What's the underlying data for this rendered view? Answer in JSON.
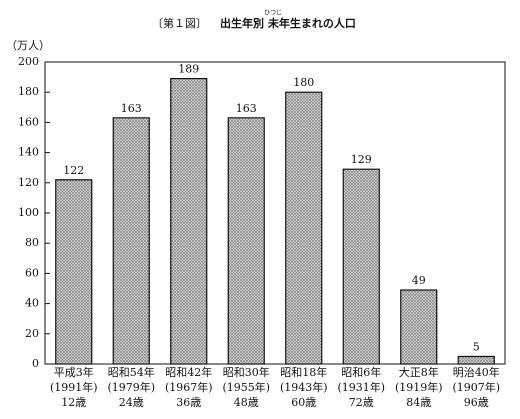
{
  "chart_data": {
    "type": "bar",
    "figure_label": "〔第１図〕",
    "title": "出生年別 未年生まれの人口",
    "title_ruby": "ひつじ",
    "y_label": "（万人）",
    "categories": [
      [
        "平成3年",
        "(1991年)",
        "12歳"
      ],
      [
        "昭和54年",
        "(1979年)",
        "24歳"
      ],
      [
        "昭和42年",
        "(1967年)",
        "36歳"
      ],
      [
        "昭和30年",
        "(1955年)",
        "48歳"
      ],
      [
        "昭和18年",
        "(1943年)",
        "60歳"
      ],
      [
        "昭和6年",
        "(1931年)",
        "72歳"
      ],
      [
        "大正8年",
        "(1919年)",
        "84歳"
      ],
      [
        "明治40年",
        "(1907年)",
        "96歳"
      ]
    ],
    "values": [
      122,
      163,
      189,
      163,
      180,
      129,
      49,
      5
    ],
    "color": "#c8c8c8",
    "ylim": [
      0,
      200
    ],
    "yticks": [
      0,
      20,
      40,
      60,
      80,
      100,
      120,
      140,
      160,
      180,
      200
    ],
    "grid": false
  }
}
